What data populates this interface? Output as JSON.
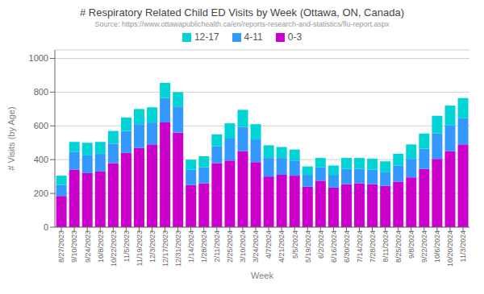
{
  "chart_data": {
    "type": "bar",
    "title": "# Respiratory Related Child ED Visits by Week (Ottawa, ON, Canada)",
    "subtitle": "Source: https://www.ottawapublichealth.ca/en/reports-research-and-statistics/flu-report.aspx",
    "x_label": "Week",
    "y_label": "# Visits (by Age)",
    "categories": [
      "8/27/2023",
      "9/10/2023",
      "9/24/2023",
      "10/8/2023",
      "10/22/2023",
      "11/5/2023",
      "11/19/2023",
      "12/3/2023",
      "12/17/2023",
      "12/31/2023",
      "1/14/2024",
      "1/28/2024",
      "2/11/2024",
      "2/25/2024",
      "3/10/2024",
      "3/24/2024",
      "4/7/2024",
      "4/21/2024",
      "5/5/2024",
      "5/19/2024",
      "6/2/2024",
      "6/16/2024",
      "6/30/2024",
      "7/14/2024",
      "7/28/2024",
      "8/11/2024",
      "8/25/2024",
      "9/8/2024",
      "9/22/2024",
      "10/6/2024",
      "10/20/2024",
      "11/3/2024"
    ],
    "series": [
      {
        "name": "12-17",
        "color": "#00D4D4",
        "values": [
          55,
          60,
          75,
          70,
          75,
          80,
          90,
          90,
          90,
          85,
          60,
          65,
          70,
          90,
          100,
          90,
          75,
          65,
          65,
          50,
          55,
          55,
          65,
          65,
          65,
          65,
          70,
          85,
          90,
          105,
          115,
          120
        ]
      },
      {
        "name": "4-11",
        "color": "#3399FF",
        "values": [
          65,
          105,
          105,
          105,
          115,
          130,
          140,
          130,
          145,
          155,
          90,
          95,
          100,
          130,
          145,
          135,
          110,
          100,
          90,
          70,
          80,
          75,
          90,
          85,
          85,
          80,
          95,
          110,
          120,
          150,
          155,
          155
        ]
      },
      {
        "name": "0-3",
        "color": "#CC00CC",
        "values": [
          185,
          340,
          320,
          330,
          380,
          440,
          470,
          490,
          620,
          560,
          250,
          260,
          380,
          395,
          450,
          385,
          300,
          310,
          305,
          240,
          275,
          235,
          255,
          260,
          255,
          245,
          270,
          295,
          345,
          405,
          450,
          490
        ]
      }
    ],
    "stacked": true,
    "ylim": [
      0,
      1050
    ],
    "yticks": [
      0,
      200,
      400,
      600,
      800,
      1000
    ],
    "grid": true,
    "legend": "top"
  }
}
